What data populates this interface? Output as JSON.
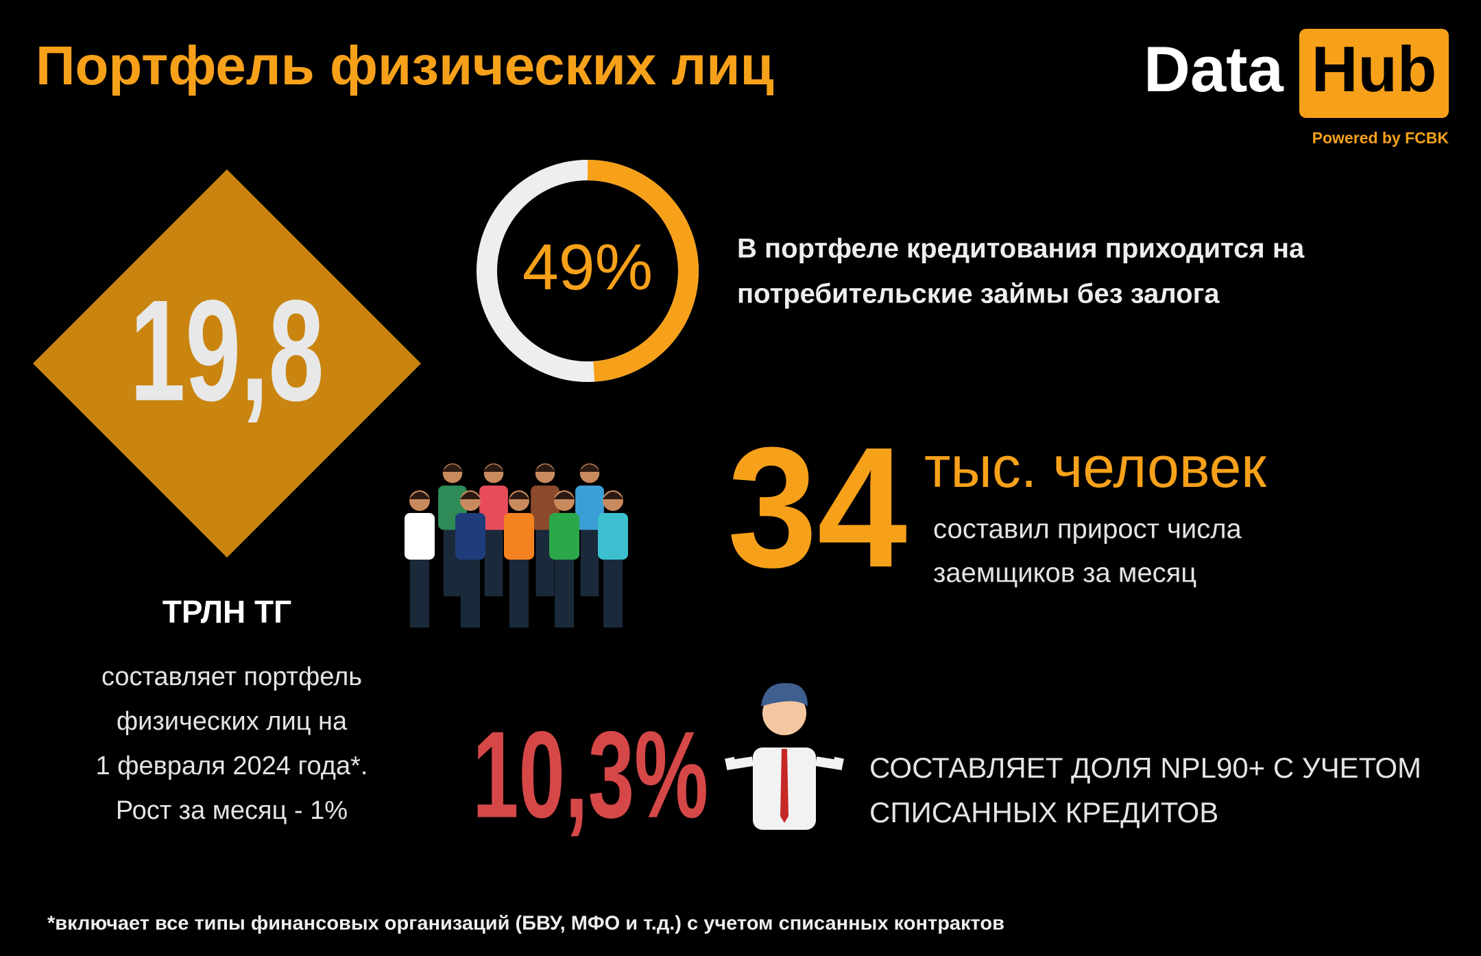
{
  "header": {
    "title": "Портфель физических лиц",
    "logo_left": "Data",
    "logo_right": "Hub",
    "logo_sub": "Powered by FCBK"
  },
  "portfolio": {
    "amount": "19,8",
    "unit": "ТРЛН ТГ",
    "lines": [
      "составляет портфель",
      "физических лиц на",
      "1 февраля 2024 года*.",
      "Рост за месяц - 1%"
    ]
  },
  "ring": {
    "value": 49,
    "label": "49%",
    "lines": [
      "В портфеле кредитования приходится на",
      "потребительские займы без залога"
    ]
  },
  "borrowers": {
    "amount": "34",
    "unit": "тыс. человек",
    "lines": [
      "составил прирост числа",
      "заемщиков за месяц"
    ]
  },
  "npl": {
    "amount": "10,3%",
    "lines": [
      "СОСТАВЛЯЕТ ДОЛЯ NPL90+ С УЧЕТОМ",
      "СПИСАННЫХ КРЕДИТОВ"
    ]
  },
  "footnote": "*включает все типы финансовых организаций (БВУ, МФО и т.д.) с учетом списанных контрактов"
}
